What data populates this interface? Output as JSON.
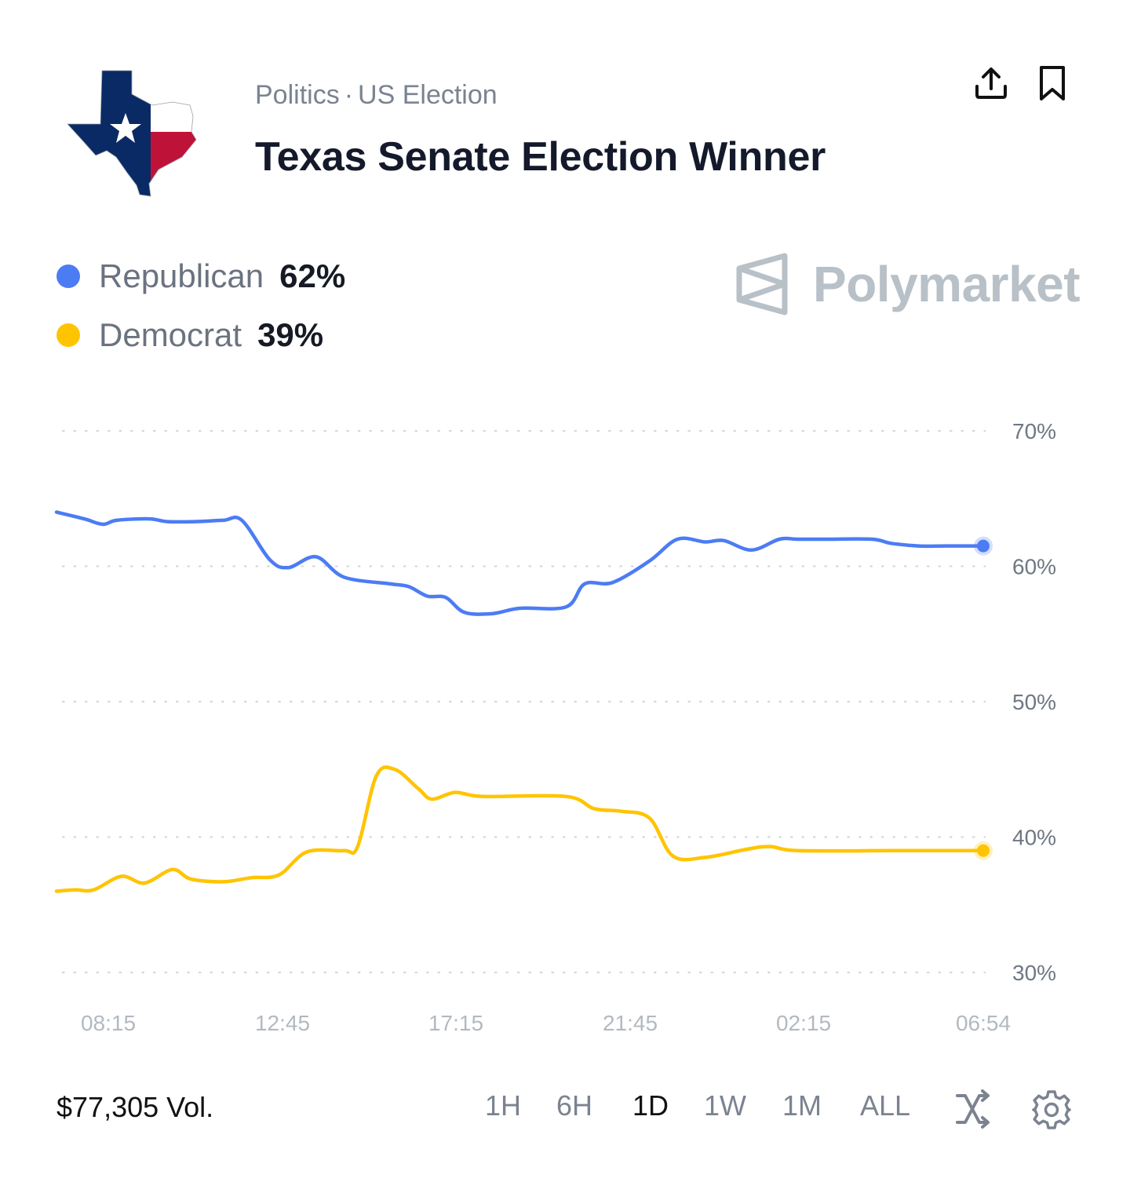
{
  "header": {
    "category": "Politics",
    "separator": "·",
    "subcategory": "US Election",
    "title": "Texas Senate Election Winner"
  },
  "icons": {
    "share": "share-upload-icon",
    "bookmark": "bookmark-icon",
    "shuffle": "shuffle-icon",
    "settings": "gear-icon"
  },
  "legend": [
    {
      "name": "Republican",
      "value": "62%",
      "color": "#4c7cf4"
    },
    {
      "name": "Democrat",
      "value": "39%",
      "color": "#ffc400"
    }
  ],
  "brand": {
    "name": "Polymarket"
  },
  "footer": {
    "volume": "$77,305 Vol.",
    "ranges": [
      "1H",
      "6H",
      "1D",
      "1W",
      "1M",
      "ALL"
    ],
    "active_range": "1D"
  },
  "chart_data": {
    "type": "line",
    "ylim": [
      30,
      70
    ],
    "yticks": [
      70,
      60,
      50,
      40,
      30
    ],
    "ytick_labels": [
      "70%",
      "60%",
      "50%",
      "40%",
      "30%"
    ],
    "xtick_labels": [
      "08:15",
      "12:45",
      "17:15",
      "21:45",
      "02:15",
      "06:54"
    ],
    "grid": true,
    "series": [
      {
        "name": "Republican",
        "color": "#4c7cf4",
        "points": [
          [
            0,
            64
          ],
          [
            0.03,
            63.5
          ],
          [
            0.05,
            63.1
          ],
          [
            0.065,
            63.4
          ],
          [
            0.1,
            63.5
          ],
          [
            0.12,
            63.3
          ],
          [
            0.15,
            63.3
          ],
          [
            0.18,
            63.4
          ],
          [
            0.2,
            63.4
          ],
          [
            0.23,
            60.5
          ],
          [
            0.25,
            59.9
          ],
          [
            0.28,
            60.7
          ],
          [
            0.31,
            59.2
          ],
          [
            0.36,
            58.7
          ],
          [
            0.38,
            58.5
          ],
          [
            0.4,
            57.8
          ],
          [
            0.42,
            57.7
          ],
          [
            0.44,
            56.6
          ],
          [
            0.47,
            56.5
          ],
          [
            0.5,
            56.9
          ],
          [
            0.55,
            57
          ],
          [
            0.57,
            58.7
          ],
          [
            0.6,
            58.8
          ],
          [
            0.64,
            60.4
          ],
          [
            0.67,
            62
          ],
          [
            0.7,
            61.8
          ],
          [
            0.72,
            61.9
          ],
          [
            0.75,
            61.2
          ],
          [
            0.78,
            62
          ],
          [
            0.8,
            62
          ],
          [
            0.83,
            62
          ],
          [
            0.88,
            62
          ],
          [
            0.9,
            61.7
          ],
          [
            0.93,
            61.5
          ],
          [
            0.96,
            61.5
          ],
          [
            1,
            61.5
          ]
        ]
      },
      {
        "name": "Democrat",
        "color": "#ffc400",
        "points": [
          [
            0,
            36
          ],
          [
            0.02,
            36.1
          ],
          [
            0.04,
            36.1
          ],
          [
            0.07,
            37.1
          ],
          [
            0.095,
            36.6
          ],
          [
            0.125,
            37.6
          ],
          [
            0.145,
            36.9
          ],
          [
            0.18,
            36.7
          ],
          [
            0.21,
            37
          ],
          [
            0.24,
            37.2
          ],
          [
            0.27,
            38.9
          ],
          [
            0.31,
            39
          ],
          [
            0.325,
            39.3
          ],
          [
            0.345,
            44.5
          ],
          [
            0.365,
            45
          ],
          [
            0.39,
            43.6
          ],
          [
            0.405,
            42.8
          ],
          [
            0.43,
            43.3
          ],
          [
            0.46,
            43
          ],
          [
            0.55,
            43
          ],
          [
            0.58,
            42.1
          ],
          [
            0.61,
            41.9
          ],
          [
            0.64,
            41.4
          ],
          [
            0.665,
            38.6
          ],
          [
            0.7,
            38.5
          ],
          [
            0.745,
            39.1
          ],
          [
            0.77,
            39.3
          ],
          [
            0.8,
            39
          ],
          [
            0.9,
            39
          ],
          [
            0.95,
            39
          ],
          [
            1,
            39
          ]
        ]
      }
    ]
  }
}
